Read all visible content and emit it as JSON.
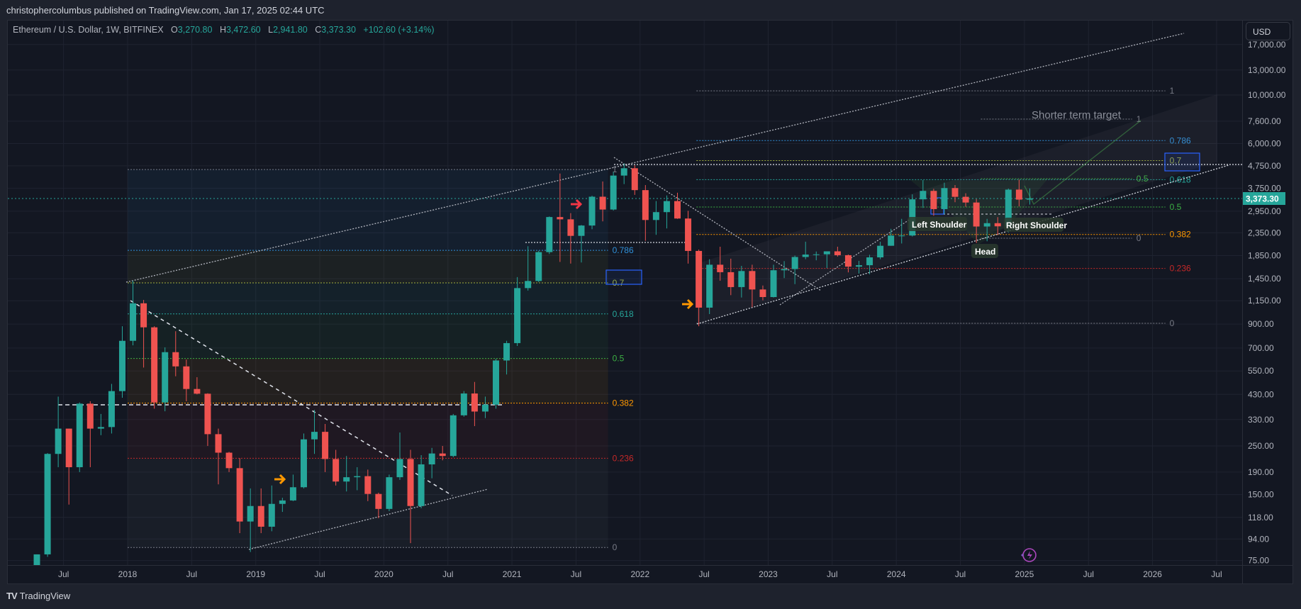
{
  "header": {
    "publisher": "christophercolumbus published on TradingView.com, Jan 17, 2025 02:44 UTC"
  },
  "legend": {
    "symbol": "Ethereum / U.S. Dollar, 1W, BITFINEX",
    "o_key": "O",
    "o": "3,270.80",
    "h_key": "H",
    "h": "3,472.60",
    "l_key": "L",
    "l": "2,941.80",
    "c_key": "C",
    "c": "3,373.30",
    "change": "+102.60 (+3.14%)"
  },
  "price_axis": {
    "currency": "USD",
    "current_price": "3,373.30",
    "labels": [
      "17,000.00",
      "13,000.00",
      "10,000.00",
      "7,600.00",
      "6,000.00",
      "4,750.00",
      "3,750.00",
      "2,950.00",
      "2,350.00",
      "1,850.00",
      "1,450.00",
      "1,150.00",
      "900.00",
      "700.00",
      "550.00",
      "430.00",
      "330.00",
      "250.00",
      "190.00",
      "150.00",
      "118.00",
      "94.00",
      "75.00"
    ]
  },
  "time_axis": {
    "labels": [
      "Jul",
      "2018",
      "Jul",
      "2019",
      "Jul",
      "2020",
      "Jul",
      "2021",
      "Jul",
      "2022",
      "Jul",
      "2023",
      "Jul",
      "2024",
      "Jul",
      "2025",
      "Jul",
      "2026",
      "Jul"
    ]
  },
  "annotations": {
    "shorter_term_target": "Shorter term target",
    "left_shoulder": "Left Shoulder",
    "head": "Head",
    "right_shoulder": "Right Shoulder"
  },
  "footer": {
    "brand": "TradingView"
  },
  "colors": {
    "up": "#26a69a",
    "down": "#ef5350",
    "background": "#131722",
    "price_badge": "#26a69a"
  },
  "chart_data": {
    "type": "candlestick",
    "title": "Ethereum / U.S. Dollar, 1W, BITFINEX",
    "yscale": "log",
    "ylim": [
      75,
      17000
    ],
    "xlim": [
      "2017-02",
      "2026-10"
    ],
    "grid": true,
    "current_price": 3373.3,
    "candle_start": "2017-04",
    "candle_period": "month (approximation of weekly series)",
    "ohlc": [
      [
        50,
        80,
        47,
        80
      ],
      [
        80,
        232,
        78,
        230
      ],
      [
        230,
        420,
        200,
        300
      ],
      [
        300,
        300,
        135,
        200
      ],
      [
        200,
        395,
        190,
        390
      ],
      [
        390,
        400,
        200,
        300
      ],
      [
        300,
        350,
        280,
        305
      ],
      [
        305,
        480,
        285,
        445
      ],
      [
        445,
        880,
        415,
        755
      ],
      [
        755,
        1420,
        720,
        1120
      ],
      [
        1120,
        1160,
        570,
        870
      ],
      [
        870,
        880,
        370,
        395
      ],
      [
        395,
        705,
        360,
        670
      ],
      [
        670,
        835,
        520,
        577
      ],
      [
        577,
        620,
        400,
        455
      ],
      [
        455,
        515,
        430,
        433
      ],
      [
        433,
        435,
        250,
        283
      ],
      [
        283,
        300,
        167,
        233
      ],
      [
        233,
        235,
        190,
        198
      ],
      [
        198,
        220,
        100,
        113
      ],
      [
        113,
        160,
        82,
        133
      ],
      [
        133,
        160,
        100,
        107
      ],
      [
        107,
        165,
        102,
        136
      ],
      [
        136,
        145,
        125,
        141
      ],
      [
        141,
        185,
        140,
        162
      ],
      [
        162,
        285,
        160,
        268
      ],
      [
        268,
        365,
        230,
        290
      ],
      [
        290,
        315,
        190,
        218
      ],
      [
        218,
        240,
        165,
        172
      ],
      [
        172,
        225,
        155,
        180
      ],
      [
        180,
        200,
        157,
        182
      ],
      [
        182,
        195,
        140,
        151
      ],
      [
        151,
        153,
        117,
        129
      ],
      [
        129,
        185,
        126,
        180
      ],
      [
        180,
        288,
        175,
        218
      ],
      [
        218,
        240,
        90,
        133
      ],
      [
        133,
        227,
        130,
        206
      ],
      [
        206,
        245,
        178,
        231
      ],
      [
        231,
        250,
        215,
        225
      ],
      [
        225,
        350,
        222,
        345
      ],
      [
        345,
        445,
        340,
        434
      ],
      [
        434,
        490,
        308,
        359
      ],
      [
        359,
        420,
        335,
        386
      ],
      [
        386,
        625,
        370,
        614
      ],
      [
        614,
        755,
        530,
        737
      ],
      [
        737,
        1475,
        715,
        1314
      ],
      [
        1314,
        2040,
        1280,
        1416
      ],
      [
        1416,
        1945,
        1400,
        1918
      ],
      [
        1918,
        2790,
        1880,
        2773
      ],
      [
        2773,
        4380,
        1730,
        2707
      ],
      [
        2707,
        2890,
        1700,
        2275
      ],
      [
        2275,
        2550,
        1720,
        2536
      ],
      [
        2536,
        3470,
        2440,
        3433
      ],
      [
        3433,
        4030,
        2650,
        3000
      ],
      [
        3000,
        4460,
        2970,
        4288
      ],
      [
        4288,
        4870,
        3920,
        4631
      ],
      [
        4631,
        4780,
        3500,
        3680
      ],
      [
        3680,
        3880,
        2160,
        2688
      ],
      [
        2688,
        3280,
        2300,
        2920
      ],
      [
        2920,
        3480,
        2460,
        3280
      ],
      [
        3280,
        3580,
        2720,
        2730
      ],
      [
        2730,
        2960,
        1700,
        1942
      ],
      [
        1942,
        1970,
        880,
        1070
      ],
      [
        1070,
        1780,
        1000,
        1680
      ],
      [
        1680,
        2030,
        1420,
        1553
      ],
      [
        1553,
        1790,
        1220,
        1328
      ],
      [
        1328,
        1660,
        1190,
        1572
      ],
      [
        1572,
        1680,
        1075,
        1295
      ],
      [
        1295,
        1350,
        1155,
        1196
      ],
      [
        1196,
        1680,
        1190,
        1585
      ],
      [
        1585,
        1745,
        1460,
        1605
      ],
      [
        1605,
        1850,
        1370,
        1822
      ],
      [
        1822,
        2140,
        1780,
        1869
      ],
      [
        1869,
        1930,
        1760,
        1874
      ],
      [
        1874,
        1930,
        1620,
        1934
      ],
      [
        1934,
        2030,
        1830,
        1857
      ],
      [
        1857,
        1870,
        1550,
        1646
      ],
      [
        1646,
        1750,
        1530,
        1671
      ],
      [
        1671,
        1865,
        1520,
        1815
      ],
      [
        1815,
        2140,
        1780,
        2050
      ],
      [
        2050,
        2450,
        2050,
        2282
      ],
      [
        2282,
        2720,
        2100,
        2283
      ],
      [
        2283,
        3520,
        2260,
        3340
      ],
      [
        3340,
        4090,
        3050,
        3650
      ],
      [
        3650,
        3730,
        2810,
        3014
      ],
      [
        3014,
        3980,
        2860,
        3760
      ],
      [
        3760,
        3880,
        3240,
        3430
      ],
      [
        3430,
        3560,
        3090,
        3230
      ],
      [
        3230,
        3350,
        2110,
        2510
      ],
      [
        2510,
        2720,
        2150,
        2600
      ],
      [
        2600,
        2770,
        2300,
        2515
      ],
      [
        2515,
        3740,
        2360,
        3700
      ],
      [
        3700,
        4107,
        3100,
        3330
      ],
      [
        3330,
        3745,
        3160,
        3373.3
      ]
    ],
    "fib_retracements": [
      {
        "name": "fib-2018-2021",
        "price_0": 86,
        "price_1": 4570,
        "t_start": 2018.0,
        "t_end": 2021.75,
        "levels": [
          {
            "level": 1,
            "label": "1",
            "color": "#787b86"
          },
          {
            "level": 0.786,
            "label": "0.786",
            "color": "#2f8fd8"
          },
          {
            "level": 0.7,
            "label": "0.7",
            "color": "#9fae3c"
          },
          {
            "level": 0.618,
            "label": "0.618",
            "color": "#26a69a"
          },
          {
            "level": 0.5,
            "label": "0.5",
            "color": "#3cb043"
          },
          {
            "level": 0.382,
            "label": "0.382",
            "color": "#ff9800"
          },
          {
            "level": 0.236,
            "label": "0.236",
            "color": "#c62828"
          },
          {
            "level": 0,
            "label": "0",
            "color": "#787b86"
          }
        ]
      },
      {
        "name": "fib-2022-2026",
        "price_0": 908,
        "price_1": 10450,
        "t_start": 2022.44,
        "t_end": 2026.1,
        "levels": [
          {
            "level": 1,
            "label": "1",
            "color": "#787b86"
          },
          {
            "level": 0.786,
            "label": "0.786",
            "color": "#2f8fd8"
          },
          {
            "level": 0.7,
            "label": "0.7",
            "color": "#9fae3c"
          },
          {
            "level": 0.618,
            "label": "0.618",
            "color": "#26a69a"
          },
          {
            "level": 0.5,
            "label": "0.5",
            "color": "#3cb043"
          },
          {
            "level": 0.382,
            "label": "0.382",
            "color": "#ff9800"
          },
          {
            "level": 0.236,
            "label": "0.236",
            "color": "#c62828"
          },
          {
            "level": 0,
            "label": "0",
            "color": "#787b86"
          }
        ]
      },
      {
        "name": "fib-short-term",
        "price_0": 2220,
        "price_1": 7760,
        "t_start": 2024.66,
        "t_end": 2025.84,
        "levels": [
          {
            "level": 1,
            "label": "1",
            "color": "#787b86"
          },
          {
            "level": 0.5,
            "label": "0.5",
            "color": "#3cb043"
          },
          {
            "level": 0,
            "label": "0",
            "color": "#787b86"
          }
        ]
      }
    ]
  }
}
